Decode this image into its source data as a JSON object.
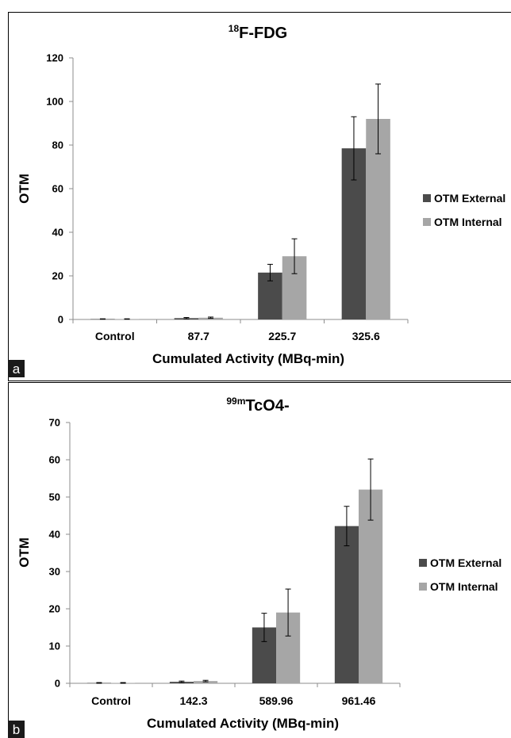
{
  "colors": {
    "external": "#4b4b4b",
    "internal": "#a6a6a6",
    "panel_label_bg": "#1a1a1a"
  },
  "chart_data": [
    {
      "type": "bar",
      "panel_label": "a",
      "title_superscript": "18",
      "title_main": "F-FDG",
      "xlabel": "Cumulated Activity (MBq-min)",
      "ylabel": "OTM",
      "categories": [
        "Control",
        "87.7",
        "225.7",
        "325.6"
      ],
      "ylim": [
        0,
        120
      ],
      "yticks": [
        "0",
        "20",
        "40",
        "60",
        "80",
        "100",
        "120"
      ],
      "grid": false,
      "legend_position": "right",
      "series": [
        {
          "name": "OTM External",
          "color": "#4b4b4b",
          "values": [
            0.2,
            0.6,
            21.5,
            78.5
          ],
          "errors": [
            0.1,
            0.3,
            3.8,
            14.5
          ]
        },
        {
          "name": "OTM Internal",
          "color": "#a6a6a6",
          "values": [
            0.2,
            0.8,
            29.0,
            92.0
          ],
          "errors": [
            0.1,
            0.3,
            8.0,
            16.0
          ]
        }
      ]
    },
    {
      "type": "bar",
      "panel_label": "b",
      "title_superscript": "99m",
      "title_main": "TcO4-",
      "xlabel": "Cumulated Activity (MBq-min)",
      "ylabel": "OTM",
      "categories": [
        "Control",
        "142.3",
        "589.96",
        "961.46"
      ],
      "ylim": [
        0,
        70
      ],
      "yticks": [
        "0",
        "10",
        "20",
        "30",
        "40",
        "50",
        "60",
        "70"
      ],
      "grid": false,
      "legend_position": "right",
      "series": [
        {
          "name": "OTM External",
          "color": "#4b4b4b",
          "values": [
            0.1,
            0.4,
            15.0,
            42.2
          ],
          "errors": [
            0.1,
            0.2,
            3.8,
            5.3
          ]
        },
        {
          "name": "OTM Internal",
          "color": "#a6a6a6",
          "values": [
            0.1,
            0.6,
            19.0,
            52.0
          ],
          "errors": [
            0.1,
            0.2,
            6.3,
            8.2
          ]
        }
      ]
    }
  ]
}
